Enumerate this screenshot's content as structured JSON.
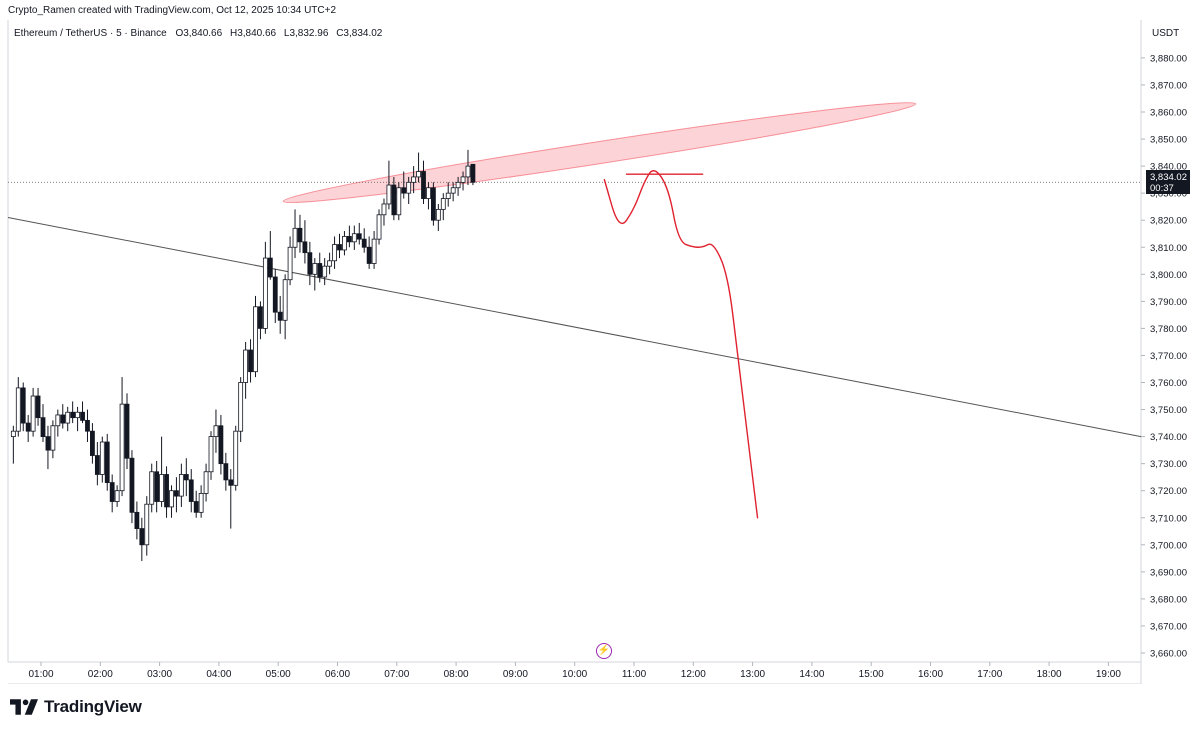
{
  "header": {
    "caption": "Crypto_Ramen created with TradingView.com, Oct 12, 2025 10:34 UTC+2"
  },
  "legend": {
    "symbol": "Ethereum / TetherUS · 5 · Binance",
    "open_label": "O",
    "open": "3,840.66",
    "high_label": "H",
    "high": "3,840.66",
    "low_label": "L",
    "low": "3,832.96",
    "close_label": "C",
    "close": "3,834.02"
  },
  "price_scale": {
    "currency": "USDT",
    "last_price": "3,834.02",
    "countdown": "00:37"
  },
  "brand": {
    "name": "TradingView",
    "logo_icon": "tradingview-logo-icon"
  },
  "event_marker": {
    "icon": "lightning-icon",
    "glyph": "⚡",
    "color": "#9c27b0"
  },
  "chart_data": {
    "type": "candlestick",
    "y_range": [
      3655,
      3885
    ],
    "y_ticks": [
      3660,
      3670,
      3680,
      3690,
      3700,
      3710,
      3720,
      3730,
      3740,
      3750,
      3760,
      3770,
      3780,
      3790,
      3800,
      3810,
      3820,
      3830,
      3840,
      3850,
      3860,
      3870,
      3880
    ],
    "y_tick_labels": [
      "3,660.00",
      "3,670.00",
      "3,680.00",
      "3,690.00",
      "3,700.00",
      "3,710.00",
      "3,720.00",
      "3,730.00",
      "3,740.00",
      "3,750.00",
      "3,760.00",
      "3,770.00",
      "3,780.00",
      "3,790.00",
      "3,800.00",
      "3,810.00",
      "3,820.00",
      "3,830.00",
      "3,840.00",
      "3,850.00",
      "3,860.00",
      "3,870.00",
      "3,880.00"
    ],
    "x_time_range": [
      "00:30",
      "19:35"
    ],
    "x_ticks": [
      "01:00",
      "02:00",
      "03:00",
      "04:00",
      "05:00",
      "06:00",
      "07:00",
      "08:00",
      "09:00",
      "10:00",
      "11:00",
      "12:00",
      "13:00",
      "14:00",
      "15:00",
      "16:00",
      "17:00",
      "18:00",
      "19:00"
    ],
    "candle_interval": "5m",
    "candles_start": "00:30",
    "candles": [
      [
        3740,
        3744,
        3730,
        3742
      ],
      [
        3742,
        3762,
        3740,
        3758
      ],
      [
        3758,
        3760,
        3742,
        3745
      ],
      [
        3745,
        3748,
        3738,
        3742
      ],
      [
        3742,
        3758,
        3740,
        3755
      ],
      [
        3755,
        3758,
        3744,
        3747
      ],
      [
        3747,
        3752,
        3738,
        3740
      ],
      [
        3740,
        3744,
        3728,
        3735
      ],
      [
        3735,
        3746,
        3732,
        3744
      ],
      [
        3744,
        3750,
        3740,
        3748
      ],
      [
        3748,
        3752,
        3743,
        3745
      ],
      [
        3745,
        3751,
        3742,
        3749
      ],
      [
        3749,
        3753,
        3745,
        3747
      ],
      [
        3747,
        3751,
        3742,
        3749
      ],
      [
        3749,
        3753,
        3745,
        3746
      ],
      [
        3746,
        3750,
        3738,
        3742
      ],
      [
        3742,
        3745,
        3730,
        3733
      ],
      [
        3733,
        3738,
        3722,
        3726
      ],
      [
        3726,
        3740,
        3723,
        3738
      ],
      [
        3738,
        3741,
        3720,
        3723
      ],
      [
        3723,
        3726,
        3712,
        3716
      ],
      [
        3716,
        3722,
        3714,
        3720
      ],
      [
        3720,
        3762,
        3718,
        3752
      ],
      [
        3752,
        3756,
        3728,
        3732
      ],
      [
        3732,
        3735,
        3708,
        3712
      ],
      [
        3712,
        3716,
        3702,
        3706
      ],
      [
        3706,
        3710,
        3694,
        3700
      ],
      [
        3700,
        3718,
        3696,
        3715
      ],
      [
        3715,
        3730,
        3712,
        3727
      ],
      [
        3727,
        3731,
        3712,
        3716
      ],
      [
        3716,
        3740,
        3714,
        3726
      ],
      [
        3726,
        3729,
        3710,
        3714
      ],
      [
        3714,
        3722,
        3710,
        3720
      ],
      [
        3720,
        3725,
        3712,
        3718
      ],
      [
        3718,
        3730,
        3714,
        3726
      ],
      [
        3726,
        3732,
        3718,
        3724
      ],
      [
        3724,
        3728,
        3712,
        3716
      ],
      [
        3716,
        3720,
        3710,
        3712
      ],
      [
        3712,
        3722,
        3710,
        3719
      ],
      [
        3719,
        3730,
        3716,
        3727
      ],
      [
        3727,
        3742,
        3724,
        3740
      ],
      [
        3740,
        3750,
        3734,
        3744
      ],
      [
        3744,
        3748,
        3726,
        3730
      ],
      [
        3730,
        3734,
        3720,
        3724
      ],
      [
        3724,
        3728,
        3706,
        3722
      ],
      [
        3722,
        3744,
        3720,
        3742
      ],
      [
        3742,
        3762,
        3738,
        3760
      ],
      [
        3760,
        3775,
        3754,
        3772
      ],
      [
        3772,
        3776,
        3760,
        3764
      ],
      [
        3764,
        3792,
        3762,
        3788
      ],
      [
        3788,
        3790,
        3776,
        3780
      ],
      [
        3780,
        3812,
        3778,
        3806
      ],
      [
        3806,
        3816,
        3798,
        3799
      ],
      [
        3799,
        3802,
        3782,
        3786
      ],
      [
        3786,
        3792,
        3778,
        3783
      ],
      [
        3783,
        3800,
        3776,
        3798
      ],
      [
        3798,
        3814,
        3796,
        3810
      ],
      [
        3810,
        3824,
        3806,
        3817
      ],
      [
        3817,
        3822,
        3808,
        3812
      ],
      [
        3812,
        3820,
        3804,
        3808
      ],
      [
        3808,
        3812,
        3796,
        3800
      ],
      [
        3800,
        3806,
        3794,
        3804
      ],
      [
        3804,
        3808,
        3797,
        3799
      ],
      [
        3799,
        3806,
        3796,
        3803
      ],
      [
        3803,
        3808,
        3800,
        3805
      ],
      [
        3805,
        3814,
        3802,
        3811
      ],
      [
        3811,
        3815,
        3806,
        3809
      ],
      [
        3809,
        3816,
        3807,
        3814
      ],
      [
        3814,
        3818,
        3810,
        3812
      ],
      [
        3812,
        3818,
        3809,
        3815
      ],
      [
        3815,
        3819,
        3811,
        3813
      ],
      [
        3813,
        3817,
        3808,
        3810
      ],
      [
        3810,
        3814,
        3802,
        3804
      ],
      [
        3804,
        3816,
        3802,
        3813
      ],
      [
        3813,
        3824,
        3811,
        3822
      ],
      [
        3822,
        3828,
        3818,
        3826
      ],
      [
        3826,
        3842,
        3824,
        3833
      ],
      [
        3833,
        3836,
        3820,
        3822
      ],
      [
        3822,
        3834,
        3820,
        3832
      ],
      [
        3832,
        3838,
        3828,
        3830
      ],
      [
        3830,
        3836,
        3826,
        3834
      ],
      [
        3834,
        3840,
        3830,
        3836
      ],
      [
        3836,
        3845,
        3834,
        3838
      ],
      [
        3838,
        3842,
        3826,
        3828
      ],
      [
        3828,
        3834,
        3824,
        3832
      ],
      [
        3832,
        3834,
        3818,
        3820
      ],
      [
        3820,
        3826,
        3816,
        3824
      ],
      [
        3824,
        3830,
        3820,
        3828
      ],
      [
        3828,
        3834,
        3825,
        3830
      ],
      [
        3830,
        3834,
        3827,
        3832
      ],
      [
        3832,
        3836,
        3829,
        3834
      ],
      [
        3834,
        3838,
        3831,
        3836
      ],
      [
        3836,
        3846,
        3833,
        3840
      ],
      [
        3840.66,
        3840.66,
        3832.96,
        3834.02
      ]
    ],
    "last_price": 3834.02,
    "drawings": {
      "resistance_ellipse": {
        "from": [
          "05:05",
          3827
        ],
        "to": [
          "15:45",
          3863
        ],
        "color": "#f23645"
      },
      "trend_line": {
        "from": [
          "00:30",
          3821
        ],
        "to": [
          "19:35",
          3740
        ],
        "color": "#555555"
      },
      "forecast_path": {
        "color": "#e0222f",
        "points": [
          [
            "10:30",
            3835
          ],
          [
            "10:45",
            3816
          ],
          [
            "11:00",
            3824
          ],
          [
            "11:10",
            3834
          ],
          [
            "11:20",
            3840
          ],
          [
            "11:35",
            3832
          ],
          [
            "11:45",
            3812
          ],
          [
            "12:00",
            3810
          ],
          [
            "12:10",
            3810
          ],
          [
            "12:20",
            3812
          ],
          [
            "12:35",
            3800
          ],
          [
            "12:45",
            3770
          ],
          [
            "12:55",
            3740
          ],
          [
            "13:05",
            3710
          ]
        ]
      },
      "target_mark": {
        "from": [
          "11:00",
          3837
        ],
        "to": [
          "12:10",
          3837
        ],
        "color": "#e0222f"
      }
    }
  }
}
